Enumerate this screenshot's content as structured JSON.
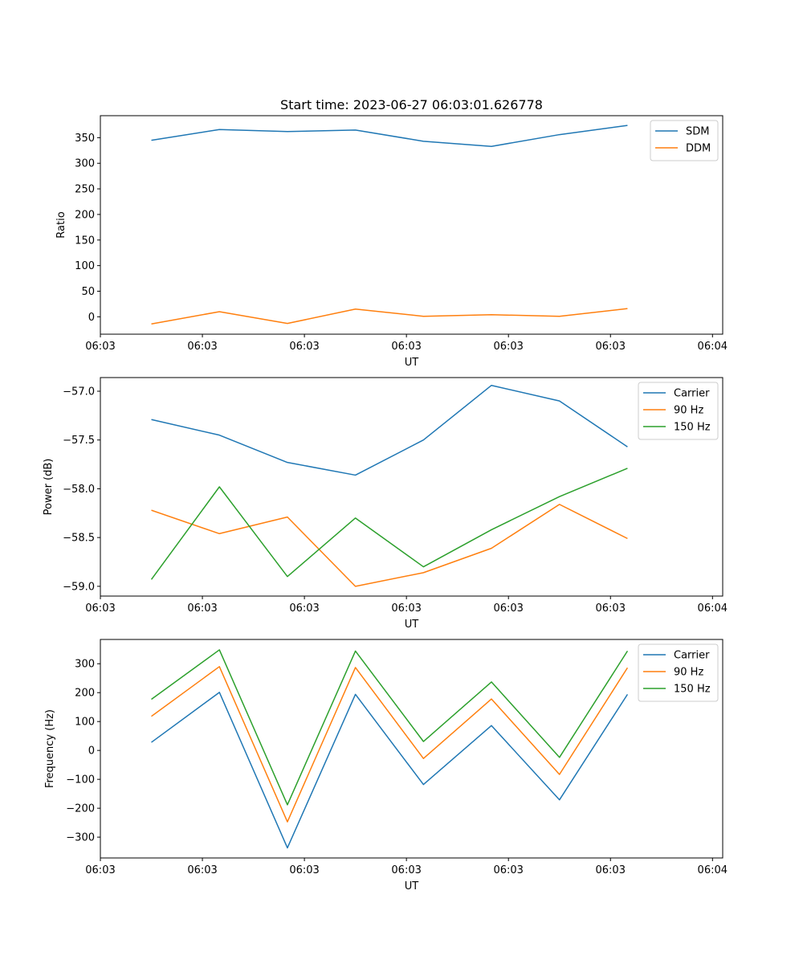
{
  "figure_title": "Start time: 2023-06-27 06:03:01.626778",
  "chart_data": [
    {
      "type": "line",
      "title": "Start time: 2023-06-27 06:03:01.626778",
      "xlabel": "UT",
      "ylabel": "Ratio",
      "x": [
        0,
        1,
        2,
        3,
        4,
        5,
        6,
        7
      ],
      "xlim": [
        -0.75,
        8.4
      ],
      "xticks": [
        -0.75,
        0.75,
        2.25,
        3.75,
        5.25,
        6.75,
        8.25
      ],
      "xtick_labels": [
        "06:03",
        "06:03",
        "06:03",
        "06:03",
        "06:03",
        "06:03",
        "06:04"
      ],
      "ylim": [
        -34,
        393
      ],
      "yticks": [
        0,
        50,
        100,
        150,
        200,
        250,
        300,
        350
      ],
      "ytick_labels": [
        "0",
        "50",
        "100",
        "150",
        "200",
        "250",
        "300",
        "350"
      ],
      "legend": "upper right",
      "grid": false,
      "series": [
        {
          "name": "SDM",
          "color": "#1f77b4",
          "values": [
            345,
            366,
            362,
            365,
            343,
            333,
            356,
            374
          ]
        },
        {
          "name": "DDM",
          "color": "#ff7f0e",
          "values": [
            -14,
            10,
            -13,
            15,
            1,
            4,
            1,
            16
          ]
        }
      ]
    },
    {
      "type": "line",
      "title": "",
      "xlabel": "UT",
      "ylabel": "Power (dB)",
      "x": [
        0,
        1,
        2,
        3,
        4,
        5,
        6,
        7
      ],
      "xlim": [
        -0.75,
        8.4
      ],
      "xticks": [
        -0.75,
        0.75,
        2.25,
        3.75,
        5.25,
        6.75,
        8.25
      ],
      "xtick_labels": [
        "06:03",
        "06:03",
        "06:03",
        "06:03",
        "06:03",
        "06:03",
        "06:04"
      ],
      "ylim": [
        -59.1,
        -56.86
      ],
      "yticks": [
        -59.0,
        -58.5,
        -58.0,
        -57.5,
        -57.0
      ],
      "ytick_labels": [
        "−59.0",
        "−58.5",
        "−58.0",
        "−57.5",
        "−57.0"
      ],
      "legend": "upper right",
      "grid": false,
      "series": [
        {
          "name": "Carrier",
          "color": "#1f77b4",
          "values": [
            -57.29,
            -57.45,
            -57.73,
            -57.86,
            -57.5,
            -56.94,
            -57.1,
            -57.57
          ]
        },
        {
          "name": "90 Hz",
          "color": "#ff7f0e",
          "values": [
            -58.22,
            -58.46,
            -58.29,
            -59.0,
            -58.86,
            -58.61,
            -58.16,
            -58.51
          ]
        },
        {
          "name": "150 Hz",
          "color": "#2ca02c",
          "values": [
            -58.93,
            -57.98,
            -58.9,
            -58.3,
            -58.8,
            -58.42,
            -58.08,
            -57.79
          ]
        }
      ]
    },
    {
      "type": "line",
      "title": "",
      "xlabel": "UT",
      "ylabel": "Frequency (Hz)",
      "x": [
        0,
        1,
        2,
        3,
        4,
        5,
        6,
        7
      ],
      "xlim": [
        -0.75,
        8.4
      ],
      "xticks": [
        -0.75,
        0.75,
        2.25,
        3.75,
        5.25,
        6.75,
        8.25
      ],
      "xtick_labels": [
        "06:03",
        "06:03",
        "06:03",
        "06:03",
        "06:03",
        "06:03",
        "06:04"
      ],
      "ylim": [
        -372,
        384
      ],
      "yticks": [
        -300,
        -200,
        -100,
        0,
        100,
        200,
        300
      ],
      "ytick_labels": [
        "−300",
        "−200",
        "−100",
        "0",
        "100",
        "200",
        "300"
      ],
      "legend": "upper right",
      "grid": false,
      "series": [
        {
          "name": "Carrier",
          "color": "#1f77b4",
          "values": [
            28,
            201,
            -337,
            194,
            -118,
            86,
            -171,
            194
          ]
        },
        {
          "name": "90 Hz",
          "color": "#ff7f0e",
          "values": [
            118,
            290,
            -247,
            287,
            -28,
            178,
            -83,
            286
          ]
        },
        {
          "name": "150 Hz",
          "color": "#2ca02c",
          "values": [
            177,
            348,
            -188,
            344,
            31,
            237,
            -24,
            344
          ]
        }
      ]
    }
  ]
}
